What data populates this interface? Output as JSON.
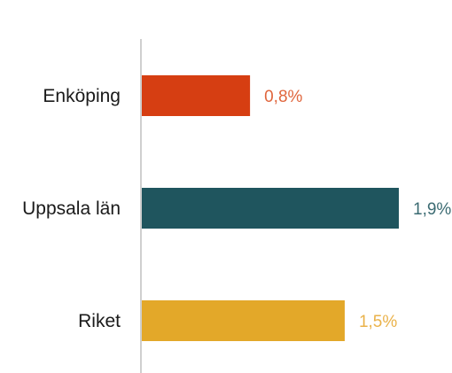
{
  "chart_data": {
    "type": "bar",
    "orientation": "horizontal",
    "categories": [
      "Enköping",
      "Uppsala län",
      "Riket"
    ],
    "values": [
      0.8,
      1.9,
      1.5
    ],
    "value_labels": [
      "0,8%",
      "1,9%",
      "1,5%"
    ],
    "colors": [
      "#d63e12",
      "#1f555e",
      "#e3a829"
    ],
    "label_colors": [
      "#e0663d",
      "#3b6b72",
      "#eab24a"
    ],
    "unit": "%",
    "xlim": [
      0,
      1.9
    ],
    "grid": false,
    "legend": "none",
    "title": "",
    "xlabel": "",
    "ylabel": ""
  }
}
